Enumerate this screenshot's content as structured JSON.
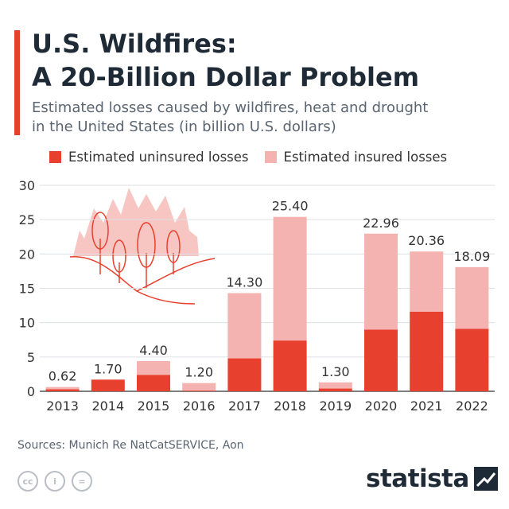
{
  "header": {
    "title_line1": "U.S. Wildfires:",
    "title_line2": "A 20-Billion Dollar Problem",
    "subtitle_line1": "Estimated losses caused by wildfires, heat and drought",
    "subtitle_line2": "in the United States (in billion U.S. dollars)"
  },
  "footer": {
    "source": "Sources: Munich Re NatCatSERVICE, Aon",
    "brand": "statista",
    "license_icons": [
      "cc",
      "i",
      "="
    ]
  },
  "colors": {
    "accent": "#e8402e",
    "uninsured": "#e8402e",
    "insured": "#f4b3b0",
    "illustration": "#f7c6c2",
    "grid": "#dcdfe3",
    "text": "#333333"
  },
  "chart_data": {
    "type": "bar",
    "stacked": true,
    "categories": [
      "2013",
      "2014",
      "2015",
      "2016",
      "2017",
      "2018",
      "2019",
      "2020",
      "2021",
      "2022"
    ],
    "series": [
      {
        "name": "Estimated uninsured losses",
        "values": [
          0.3,
          1.7,
          2.4,
          0.1,
          4.8,
          7.4,
          0.4,
          9.0,
          11.6,
          9.1
        ]
      },
      {
        "name": "Estimated insured losses",
        "values": [
          0.32,
          0.0,
          2.0,
          1.1,
          9.5,
          18.0,
          0.9,
          13.96,
          8.76,
          8.99
        ]
      }
    ],
    "totals": [
      0.62,
      1.7,
      4.4,
      1.2,
      14.3,
      25.4,
      1.3,
      22.96,
      20.36,
      18.09
    ],
    "total_labels": [
      "0.62",
      "1.70",
      "4.40",
      "1.20",
      "14.30",
      "25.40",
      "1.30",
      "22.96",
      "20.36",
      "18.09"
    ],
    "yticks": [
      0,
      5,
      10,
      15,
      20,
      25,
      30
    ],
    "ylim": [
      0,
      30
    ],
    "grid": true,
    "legend_position": "top"
  }
}
